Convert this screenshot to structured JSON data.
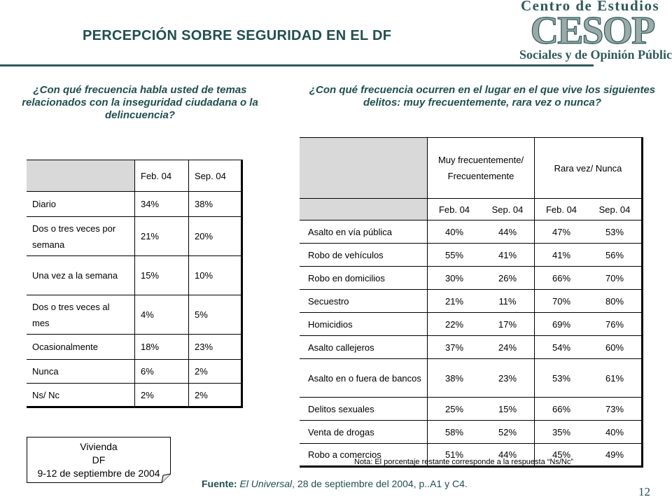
{
  "title": "PERCEPCIÓN SOBRE SEGURIDAD EN EL DF",
  "logo": {
    "line1": "Centro de Estudios",
    "mark": "CESOP",
    "line2": "Sociales y de Opinión Pública"
  },
  "colors": {
    "title": "#1f4f4f",
    "rule": "#2d5a5a",
    "header_fill": "#d9d9d9"
  },
  "left": {
    "question": "¿Con qué frecuencia habla usted de temas relacionados con la inseguridad ciudadana o la delincuencia?",
    "columns": [
      "Feb. 04",
      "Sep. 04"
    ],
    "rows": [
      {
        "label": "Diario",
        "feb": "34%",
        "sep": "38%"
      },
      {
        "label": "Dos o tres veces por semana",
        "feb": "21%",
        "sep": "20%"
      },
      {
        "label": "Una vez a la semana",
        "feb": "15%",
        "sep": "10%"
      },
      {
        "label": "Dos o tres veces al mes",
        "feb": "4%",
        "sep": "5%"
      },
      {
        "label": "Ocasionalmente",
        "feb": "18%",
        "sep": "23%"
      },
      {
        "label": "Nunca",
        "feb": "6%",
        "sep": "2%"
      },
      {
        "label": "Ns/ Nc",
        "feb": "2%",
        "sep": "2%"
      }
    ]
  },
  "right": {
    "question": "¿Con qué frecuencia ocurren en el lugar en el que vive los siguientes delitos: muy frecuentemente, rara vez o nunca?",
    "groups": [
      "Muy frecuentemente/ Frecuentemente",
      "Rara vez/ Nunca"
    ],
    "columns": [
      "Feb. 04",
      "Sep. 04",
      "Feb. 04",
      "Sep. 04"
    ],
    "rows": [
      {
        "label": "Asalto en vía pública",
        "values": [
          "40%",
          "44%",
          "47%",
          "53%"
        ]
      },
      {
        "label": "Robo de vehículos",
        "values": [
          "55%",
          "41%",
          "41%",
          "56%"
        ]
      },
      {
        "label": "Robo en domicilios",
        "values": [
          "30%",
          "26%",
          "66%",
          "70%"
        ]
      },
      {
        "label": "Secuestro",
        "values": [
          "21%",
          "11%",
          "70%",
          "80%"
        ]
      },
      {
        "label": "Homicidios",
        "values": [
          "22%",
          "17%",
          "69%",
          "76%"
        ]
      },
      {
        "label": "Asalto callejeros",
        "values": [
          "37%",
          "24%",
          "54%",
          "60%"
        ]
      },
      {
        "label": "Asalto en o fuera de bancos",
        "values": [
          "38%",
          "23%",
          "53%",
          "61%"
        ]
      },
      {
        "label": "Delitos sexuales",
        "values": [
          "25%",
          "15%",
          "66%",
          "73%"
        ]
      },
      {
        "label": "Venta de drogas",
        "values": [
          "58%",
          "52%",
          "35%",
          "40%"
        ]
      },
      {
        "label": "Robo a comercios",
        "values": [
          "51%",
          "44%",
          "45%",
          "49%"
        ]
      }
    ],
    "note": "Nota: El porcentaje restante corresponde a la respuesta “Ns/Nc”"
  },
  "card": {
    "line1": "Vivienda",
    "line2": "DF",
    "line3": "9-12 de septiembre de 2004"
  },
  "source": {
    "label": "Fuente:",
    "publication": "El Universal",
    "detail": ", 28  de septiembre del 2004, p..A1 y C4."
  },
  "page_number": "12"
}
